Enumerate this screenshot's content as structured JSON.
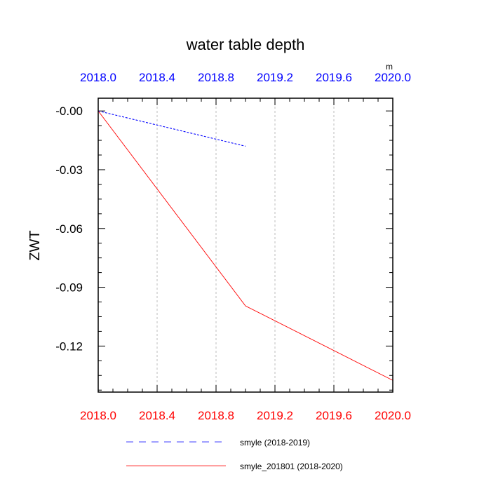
{
  "chart_data": {
    "type": "line",
    "title": "water table depth",
    "units_label": "m",
    "xlabel": "",
    "ylabel": "ZWT",
    "xlim": [
      2018.0,
      2020.0
    ],
    "ylim": [
      -0.1435,
      0.0065
    ],
    "grid": true,
    "x_ticks": [
      2018.0,
      2018.4,
      2018.8,
      2019.2,
      2019.6,
      2020.0
    ],
    "x_tick_labels": [
      "2018.0",
      "2018.4",
      "2018.8",
      "2019.2",
      "2019.6",
      "2020.0"
    ],
    "y_ticks": [
      0.0,
      -0.03,
      -0.06,
      -0.09,
      -0.12
    ],
    "y_tick_labels": [
      "-0.00",
      "-0.03",
      "-0.06",
      "-0.09",
      "-0.12"
    ],
    "top_axis_color": "#0000ff",
    "bottom_axis_color": "#ff0000",
    "series": [
      {
        "name": "smyle (2018-2019)",
        "color": "#0000ff",
        "dash": "dashed",
        "x": [
          2018.0,
          2019.0
        ],
        "y": [
          0.0,
          -0.018
        ]
      },
      {
        "name": "smyle_201801 (2018-2020)",
        "color": "#ff0000",
        "dash": "solid",
        "x": [
          2018.0,
          2019.0,
          2020.0
        ],
        "y": [
          0.0,
          -0.0995,
          -0.1375
        ]
      }
    ],
    "legend_position": "bottom"
  }
}
